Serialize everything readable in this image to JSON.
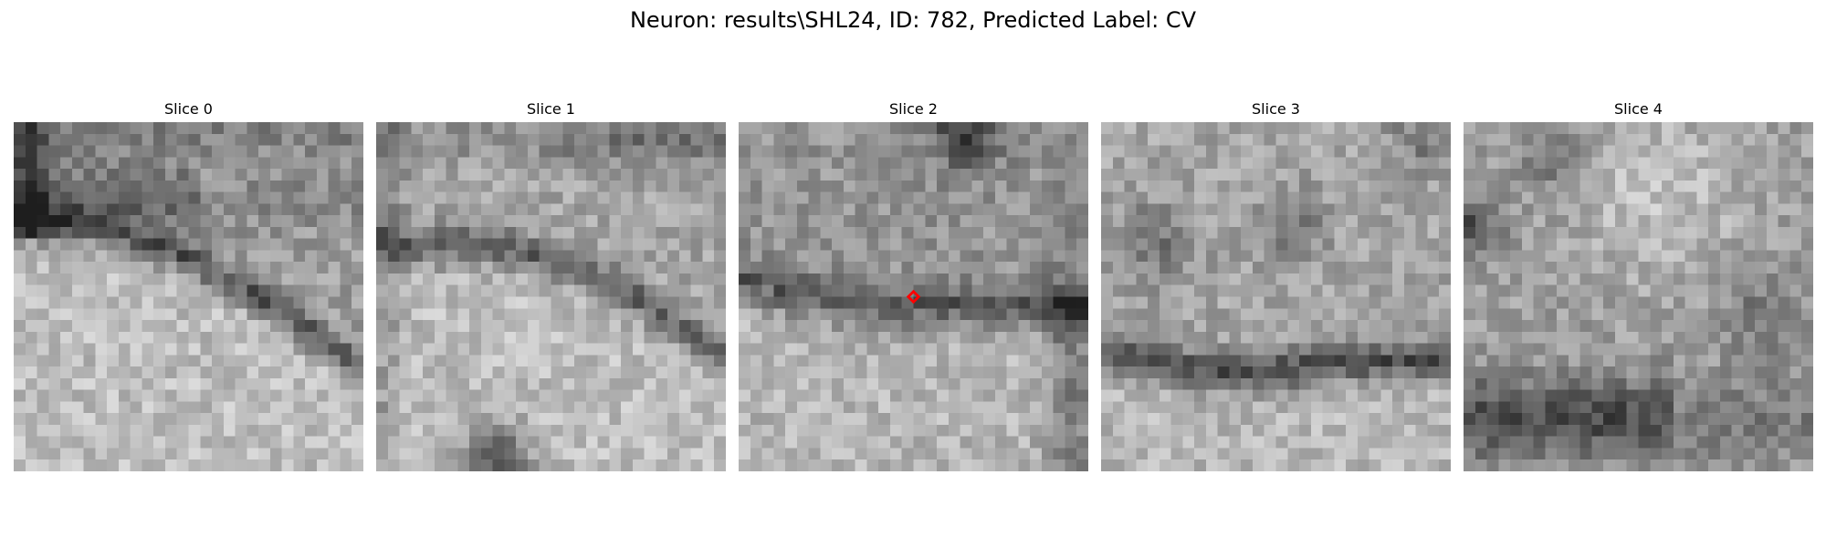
{
  "figure": {
    "title": "Neuron: results\\SHL24, ID: 782, Predicted Label: CV"
  },
  "panels": [
    {
      "title": "Slice 0"
    },
    {
      "title": "Slice 1"
    },
    {
      "title": "Slice 2"
    },
    {
      "title": "Slice 3"
    },
    {
      "title": "Slice 4"
    }
  ],
  "marker": {
    "panel_index": 2,
    "color": "#ff0000",
    "shape": "diamond-marker-icon"
  },
  "colormap": "gray"
}
